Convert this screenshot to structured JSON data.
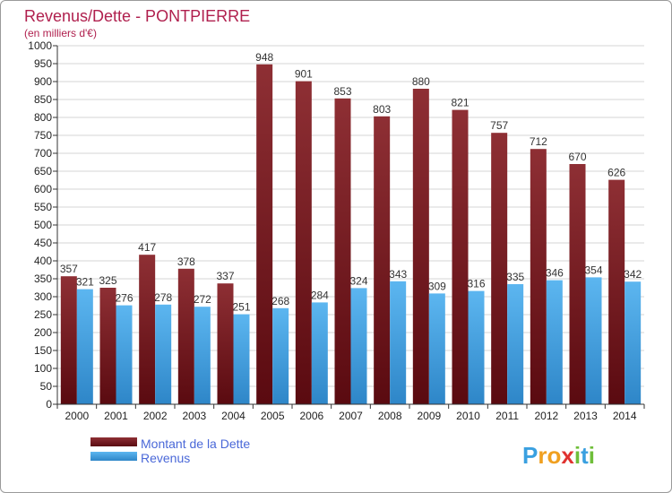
{
  "chart_data": {
    "type": "bar",
    "title": "Revenus/Dette - PONTPIERRE",
    "subtitle": "(en milliers d'€)",
    "categories": [
      "2000",
      "2001",
      "2002",
      "2003",
      "2004",
      "2005",
      "2006",
      "2007",
      "2008",
      "2009",
      "2010",
      "2011",
      "2012",
      "2013",
      "2014"
    ],
    "series": [
      {
        "name": "Montant de la Dette",
        "color": "#7a1a1f",
        "values": [
          357,
          325,
          417,
          378,
          337,
          948,
          901,
          853,
          803,
          880,
          821,
          757,
          712,
          670,
          626
        ]
      },
      {
        "name": "Revenus",
        "color": "#3f9ee0",
        "values": [
          321,
          276,
          278,
          272,
          251,
          268,
          284,
          324,
          343,
          309,
          316,
          335,
          346,
          354,
          342
        ]
      }
    ],
    "yticks": [
      0,
      50,
      100,
      150,
      200,
      250,
      300,
      350,
      400,
      450,
      500,
      550,
      600,
      650,
      700,
      750,
      800,
      850,
      900,
      950,
      1000
    ],
    "ylim": [
      0,
      1000
    ],
    "grid": true,
    "legend_position": "bottom-left"
  },
  "branding": {
    "logo_letters": [
      "P",
      "r",
      "o",
      "x",
      "i",
      "t",
      "i"
    ]
  }
}
